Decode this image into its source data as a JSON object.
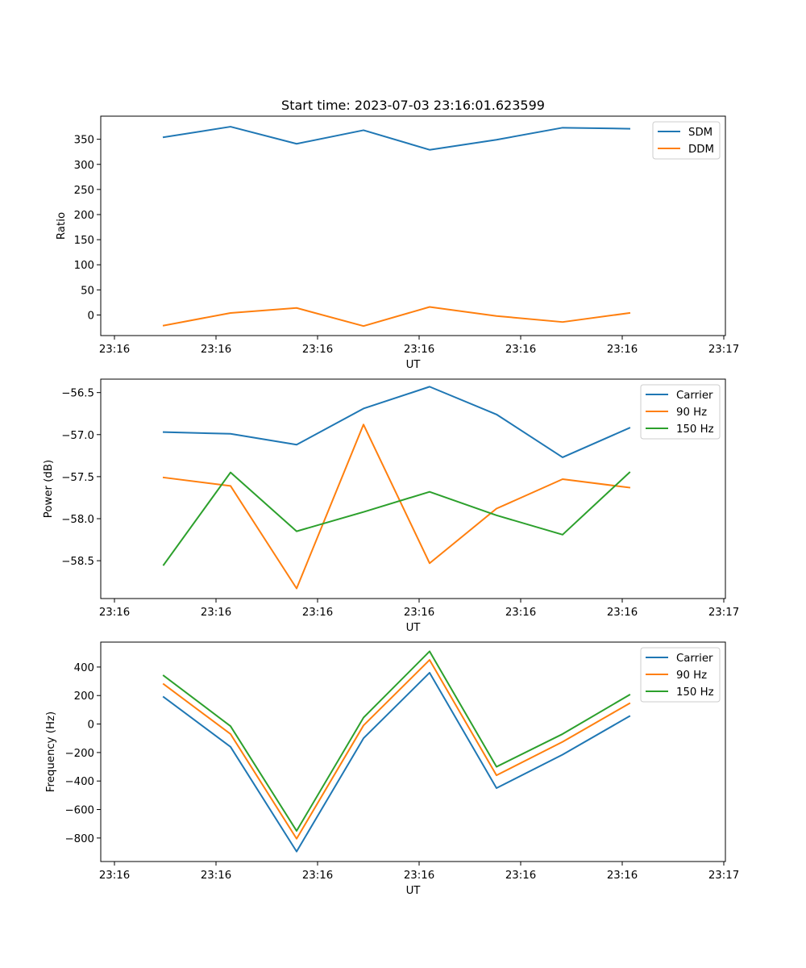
{
  "chart_data": [
    {
      "type": "line",
      "title": "Start time: 2023-07-03 23:16:01.623599",
      "xlabel": "UT",
      "ylabel": "Ratio",
      "x_ticks": [
        "23:16",
        "23:16",
        "23:16",
        "23:16",
        "23:16",
        "23:16",
        "23:17"
      ],
      "y_ticks": [
        0,
        50,
        100,
        150,
        200,
        250,
        300,
        350
      ],
      "ylim": [
        -41,
        396
      ],
      "legend": "top-right",
      "series": [
        {
          "name": "SDM",
          "color": "#1f77b4",
          "values": [
            354,
            375,
            341,
            368,
            329,
            349,
            373,
            371
          ]
        },
        {
          "name": "DDM",
          "color": "#ff7f0e",
          "values": [
            -21,
            4,
            14,
            -22,
            16,
            -2,
            -14,
            4
          ]
        }
      ]
    },
    {
      "type": "line",
      "title": "",
      "xlabel": "UT",
      "ylabel": "Power (dB)",
      "x_ticks": [
        "23:16",
        "23:16",
        "23:16",
        "23:16",
        "23:16",
        "23:16",
        "23:17"
      ],
      "y_ticks": [
        -58.5,
        -58.0,
        -57.5,
        -57.0,
        -56.5
      ],
      "y_tick_labels": [
        "−58.5",
        "−58.0",
        "−57.5",
        "−57.0",
        "−56.5"
      ],
      "ylim": [
        -58.95,
        -56.34
      ],
      "legend": "top-right",
      "series": [
        {
          "name": "Carrier",
          "color": "#1f77b4",
          "values": [
            -56.97,
            -56.99,
            -57.12,
            -56.69,
            -56.43,
            -56.76,
            -57.27,
            -56.92
          ]
        },
        {
          "name": "90 Hz",
          "color": "#ff7f0e",
          "values": [
            -57.51,
            -57.61,
            -58.83,
            -56.88,
            -58.53,
            -57.88,
            -57.53,
            -57.63
          ]
        },
        {
          "name": "150 Hz",
          "color": "#2ca02c",
          "values": [
            -58.55,
            -57.45,
            -58.15,
            -57.92,
            -57.68,
            -57.96,
            -58.19,
            -57.45
          ]
        }
      ]
    },
    {
      "type": "line",
      "title": "",
      "xlabel": "UT",
      "ylabel": "Frequency (Hz)",
      "x_ticks": [
        "23:16",
        "23:16",
        "23:16",
        "23:16",
        "23:16",
        "23:16",
        "23:17"
      ],
      "y_ticks": [
        -800,
        -600,
        -400,
        -200,
        0,
        200,
        400
      ],
      "y_tick_labels": [
        "−800",
        "−600",
        "−400",
        "−200",
        "0",
        "200",
        "400"
      ],
      "ylim": [
        -965,
        575
      ],
      "legend": "top-right",
      "series": [
        {
          "name": "Carrier",
          "color": "#1f77b4",
          "values": [
            190,
            -160,
            -895,
            -100,
            360,
            -450,
            -215,
            55
          ]
        },
        {
          "name": "90 Hz",
          "color": "#ff7f0e",
          "values": [
            280,
            -70,
            -805,
            -10,
            450,
            -360,
            -125,
            145
          ]
        },
        {
          "name": "150 Hz",
          "color": "#2ca02c",
          "values": [
            340,
            -15,
            -750,
            45,
            510,
            -300,
            -70,
            205
          ]
        }
      ]
    }
  ]
}
